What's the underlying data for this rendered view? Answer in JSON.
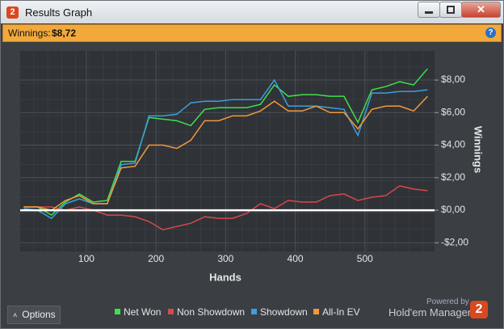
{
  "window": {
    "icon": "2",
    "title": "Results Graph"
  },
  "header": {
    "label": "Winnings:",
    "value": "$8,72"
  },
  "chart_data": {
    "type": "line",
    "xlabel": "Hands",
    "ylabel": "Winnings",
    "x": [
      10,
      30,
      50,
      70,
      90,
      110,
      130,
      150,
      170,
      190,
      210,
      230,
      250,
      270,
      290,
      310,
      330,
      350,
      370,
      390,
      410,
      430,
      450,
      470,
      490,
      510,
      530,
      550,
      570,
      590
    ],
    "series": [
      {
        "name": "Net Won",
        "color": "#3fe04a",
        "values": [
          0.2,
          0.2,
          -0.3,
          0.5,
          1.0,
          0.5,
          0.6,
          3.0,
          3.0,
          5.7,
          5.6,
          5.5,
          5.2,
          6.2,
          6.3,
          6.3,
          6.3,
          6.5,
          7.7,
          7.0,
          7.1,
          7.1,
          7.0,
          7.0,
          5.4,
          7.4,
          7.6,
          7.9,
          7.7,
          8.7
        ]
      },
      {
        "name": "Non Showdown",
        "color": "#d9484a",
        "values": [
          0.2,
          0.2,
          0.2,
          0,
          0.2,
          0,
          -0.3,
          -0.3,
          -0.4,
          -0.7,
          -1.2,
          -1.0,
          -0.8,
          -0.4,
          -0.5,
          -0.5,
          -0.2,
          0.4,
          0.1,
          0.6,
          0.5,
          0.5,
          0.9,
          1.0,
          0.6,
          0.8,
          0.9,
          1.5,
          1.3,
          1.2
        ]
      },
      {
        "name": "Showdown",
        "color": "#3d9ee0",
        "values": [
          0.1,
          0,
          -0.5,
          0.4,
          0.7,
          0.4,
          0.4,
          2.8,
          2.9,
          5.8,
          5.8,
          5.9,
          6.6,
          6.7,
          6.7,
          6.8,
          6.8,
          6.8,
          8.0,
          6.4,
          6.4,
          6.4,
          6.3,
          6.2,
          4.6,
          7.2,
          7.2,
          7.3,
          7.3,
          7.4
        ]
      },
      {
        "name": "All-In EV",
        "color": "#f09a3a",
        "values": [
          0.2,
          0.2,
          0,
          0.6,
          0.9,
          0.4,
          0.4,
          2.6,
          2.7,
          4.0,
          4.0,
          3.8,
          4.3,
          5.5,
          5.5,
          5.8,
          5.8,
          6.1,
          6.7,
          6.1,
          6.1,
          6.4,
          6.0,
          6.0,
          5.0,
          6.2,
          6.4,
          6.4,
          6.1,
          7.0
        ]
      }
    ],
    "xlim": [
      5,
      600
    ],
    "xticks": [
      100,
      200,
      300,
      400,
      500
    ],
    "ylim": [
      -2.53,
      9.79
    ],
    "yticks": [
      {
        "value": -2,
        "label": "-$2,00"
      },
      {
        "value": 0,
        "label": "$0,00"
      },
      {
        "value": 2,
        "label": "$2,00"
      },
      {
        "value": 4,
        "label": "$4,00"
      },
      {
        "value": 6,
        "label": "$6,00"
      },
      {
        "value": 8,
        "label": "$8,00"
      }
    ],
    "grid": true
  },
  "footer": {
    "options": "Options",
    "powered_by": "Powered by",
    "brand": "Hold'em Manager",
    "logo": "2"
  }
}
